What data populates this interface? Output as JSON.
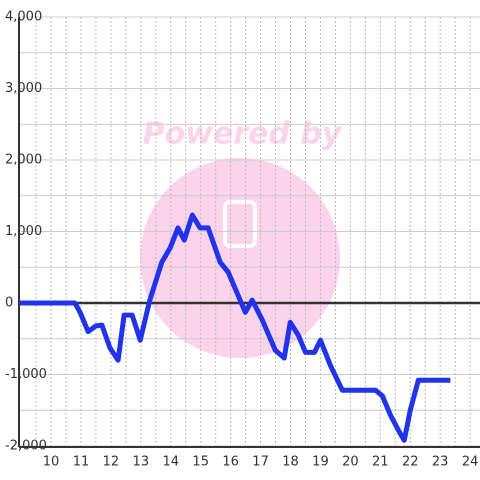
{
  "chart_data": {
    "type": "line",
    "watermark": "Powered by",
    "x": [
      8.93,
      10.8,
      10.97,
      11.24,
      11.5,
      11.7,
      11.97,
      12.24,
      12.44,
      12.71,
      12.98,
      13.3,
      13.7,
      13.98,
      14.24,
      14.45,
      14.72,
      14.98,
      15.25,
      15.65,
      15.92,
      16.49,
      16.72,
      17.06,
      17.49,
      17.79,
      17.99,
      18.26,
      18.5,
      18.8,
      19.0,
      19.33,
      19.73,
      20.84,
      21.07,
      21.34,
      21.67,
      21.8,
      22.0,
      22.27,
      23.34
    ],
    "series": [
      {
        "color": "#2233ee",
        "values": [
          0,
          0,
          -130,
          -400,
          -320,
          -310,
          -630,
          -800,
          -170,
          -170,
          -520,
          40,
          570,
          770,
          1050,
          880,
          1230,
          1050,
          1050,
          570,
          430,
          -130,
          40,
          -240,
          -660,
          -770,
          -270,
          -450,
          -690,
          -690,
          -520,
          -870,
          -1220,
          -1220,
          -1300,
          -1570,
          -1830,
          -1920,
          -1500,
          -1080,
          -1080
        ]
      }
    ],
    "xlim": [
      8.93,
      24.33
    ],
    "xticks": [
      10,
      11,
      12,
      13,
      14,
      15,
      16,
      17,
      18,
      19,
      20,
      21,
      22,
      23,
      24
    ],
    "minor_xticks": [
      9.5,
      10.5,
      11.5,
      12.5,
      13.5,
      14.5,
      15.5,
      16.5,
      17.5,
      18.5,
      19.5,
      20.5,
      21.5,
      22.5,
      23.5
    ],
    "ylim": [
      -2000,
      4000
    ],
    "yticks": [
      {
        "value": -2000,
        "label": "-2,000"
      },
      {
        "value": -1000,
        "label": "-1,000"
      },
      0,
      {
        "value": 1000,
        "label": "1,000"
      },
      {
        "value": 2000,
        "label": "2,000"
      },
      {
        "value": 3000,
        "label": "3,000"
      },
      {
        "value": 4000,
        "label": "4,000"
      }
    ],
    "minor_yticks": [
      -1500,
      -500,
      500,
      1500,
      2500,
      3500
    ],
    "grid": true
  }
}
